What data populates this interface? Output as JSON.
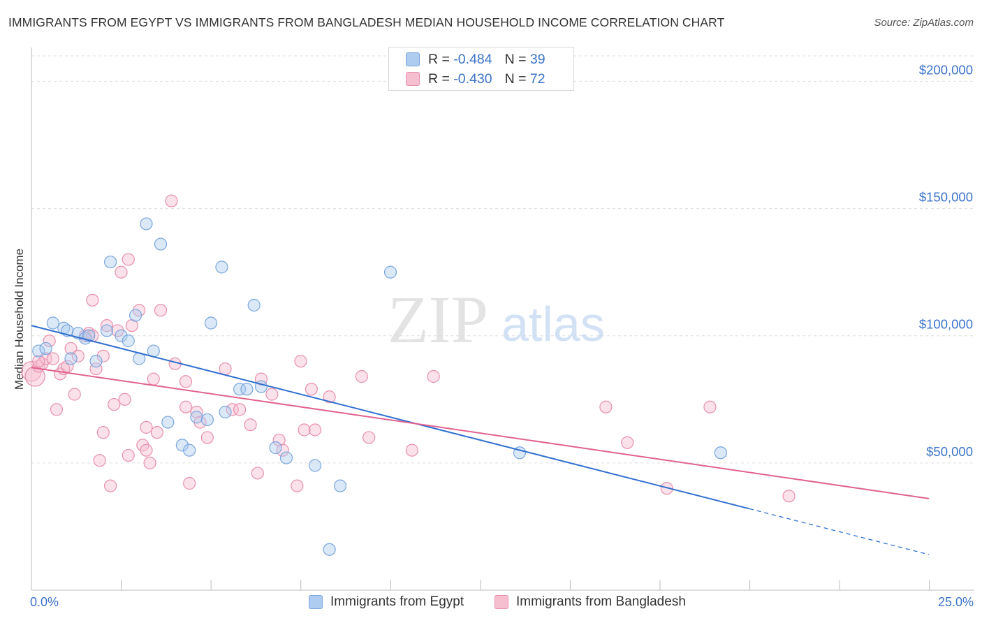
{
  "title": "IMMIGRANTS FROM EGYPT VS IMMIGRANTS FROM BANGLADESH MEDIAN HOUSEHOLD INCOME CORRELATION CHART",
  "source": "Source: ZipAtlas.com",
  "watermark": {
    "zip": "ZIP",
    "atlas": "atlas"
  },
  "legend_top": {
    "egypt": {
      "r_label": "R = ",
      "r_value": "-0.484",
      "n_label": "N = ",
      "n_value": "39"
    },
    "bangladesh": {
      "r_label": "R = ",
      "r_value": "-0.430",
      "n_label": "N = ",
      "n_value": "72"
    }
  },
  "colors": {
    "egypt_fill": "#aecbf0",
    "egypt_stroke": "#7aa6dc",
    "egypt_line": "#2f6fcf",
    "bangladesh_fill": "#f6bfd0",
    "bangladesh_stroke": "#e88fae",
    "bangladesh_line": "#e0628e",
    "axis_text": "#3b73c8",
    "grid": "#dddddd"
  },
  "chart_data": {
    "type": "scatter",
    "title": "IMMIGRANTS FROM EGYPT VS IMMIGRANTS FROM BANGLADESH MEDIAN HOUSEHOLD INCOME CORRELATION CHART",
    "xlabel": "",
    "ylabel": "Median Household Income",
    "xlim": [
      0,
      25
    ],
    "ylim": [
      0,
      210000
    ],
    "x_tick_labels": [
      "0.0%",
      "25.0%"
    ],
    "y_ticks": [
      50000,
      100000,
      150000,
      200000
    ],
    "y_tick_labels": [
      "$50,000",
      "$100,000",
      "$150,000",
      "$200,000"
    ],
    "grid": "horizontal dashed",
    "legend_position": "bottom",
    "series": [
      {
        "name": "Immigrants from Egypt",
        "r": -0.484,
        "n": 39,
        "trend": {
          "x0": 0,
          "y0": 104000,
          "x1": 20,
          "y1": 32000,
          "dashed_to": 25,
          "dashed_y": 14000
        },
        "points": [
          [
            0.2,
            94000
          ],
          [
            0.6,
            105000
          ],
          [
            0.9,
            103000
          ],
          [
            1.0,
            102000
          ],
          [
            1.1,
            91000
          ],
          [
            1.3,
            101000
          ],
          [
            1.5,
            99000
          ],
          [
            1.6,
            100000
          ],
          [
            1.8,
            90000
          ],
          [
            2.1,
            102000
          ],
          [
            2.2,
            129000
          ],
          [
            2.5,
            100000
          ],
          [
            2.7,
            98000
          ],
          [
            2.9,
            108000
          ],
          [
            3.0,
            91000
          ],
          [
            3.2,
            144000
          ],
          [
            3.4,
            94000
          ],
          [
            3.6,
            136000
          ],
          [
            3.8,
            66000
          ],
          [
            4.2,
            57000
          ],
          [
            4.4,
            55000
          ],
          [
            4.6,
            68000
          ],
          [
            4.9,
            67000
          ],
          [
            5.0,
            105000
          ],
          [
            5.3,
            127000
          ],
          [
            5.4,
            70000
          ],
          [
            5.8,
            79000
          ],
          [
            6.0,
            79000
          ],
          [
            6.2,
            112000
          ],
          [
            6.4,
            80000
          ],
          [
            6.8,
            56000
          ],
          [
            7.1,
            52000
          ],
          [
            7.9,
            49000
          ],
          [
            8.3,
            16000
          ],
          [
            8.6,
            41000
          ],
          [
            10.0,
            125000
          ],
          [
            13.6,
            54000
          ],
          [
            19.2,
            54000
          ],
          [
            0.4,
            95000
          ]
        ]
      },
      {
        "name": "Immigrants from Bangladesh",
        "r": -0.43,
        "n": 72,
        "trend": {
          "x0": 0,
          "y0": 87500,
          "x1": 25,
          "y1": 36000
        },
        "points": [
          [
            0.0,
            86000
          ],
          [
            0.1,
            84000
          ],
          [
            0.2,
            88000
          ],
          [
            0.3,
            89000
          ],
          [
            0.4,
            91000
          ],
          [
            0.5,
            98000
          ],
          [
            0.6,
            91000
          ],
          [
            0.7,
            71000
          ],
          [
            0.8,
            85000
          ],
          [
            0.9,
            87000
          ],
          [
            1.0,
            88000
          ],
          [
            1.1,
            95000
          ],
          [
            1.2,
            77000
          ],
          [
            1.3,
            92000
          ],
          [
            1.5,
            100000
          ],
          [
            1.6,
            101000
          ],
          [
            1.7,
            114000
          ],
          [
            1.8,
            87000
          ],
          [
            1.9,
            51000
          ],
          [
            2.0,
            92000
          ],
          [
            2.0,
            62000
          ],
          [
            2.1,
            104000
          ],
          [
            2.2,
            41000
          ],
          [
            2.3,
            73000
          ],
          [
            2.4,
            102000
          ],
          [
            2.5,
            125000
          ],
          [
            2.6,
            75000
          ],
          [
            2.7,
            130000
          ],
          [
            2.7,
            53000
          ],
          [
            2.8,
            104000
          ],
          [
            3.0,
            110000
          ],
          [
            3.1,
            57000
          ],
          [
            3.2,
            55000
          ],
          [
            3.2,
            64000
          ],
          [
            3.3,
            50000
          ],
          [
            3.4,
            83000
          ],
          [
            3.5,
            62000
          ],
          [
            3.6,
            110000
          ],
          [
            3.9,
            153000
          ],
          [
            4.0,
            89000
          ],
          [
            4.3,
            82000
          ],
          [
            4.3,
            72000
          ],
          [
            4.4,
            42000
          ],
          [
            4.6,
            70000
          ],
          [
            4.7,
            66000
          ],
          [
            4.9,
            60000
          ],
          [
            5.4,
            87000
          ],
          [
            5.6,
            71000
          ],
          [
            5.8,
            71000
          ],
          [
            6.1,
            65000
          ],
          [
            6.3,
            46000
          ],
          [
            6.4,
            83000
          ],
          [
            6.7,
            77000
          ],
          [
            6.9,
            59000
          ],
          [
            7.0,
            55000
          ],
          [
            7.4,
            41000
          ],
          [
            7.5,
            90000
          ],
          [
            7.6,
            63000
          ],
          [
            7.8,
            79000
          ],
          [
            7.9,
            63000
          ],
          [
            8.3,
            76000
          ],
          [
            9.2,
            84000
          ],
          [
            9.4,
            60000
          ],
          [
            10.6,
            55000
          ],
          [
            11.2,
            84000
          ],
          [
            16.0,
            72000
          ],
          [
            16.6,
            58000
          ],
          [
            17.7,
            40000
          ],
          [
            18.9,
            72000
          ],
          [
            21.1,
            37000
          ],
          [
            1.7,
            100000
          ],
          [
            0.2,
            90000
          ]
        ]
      }
    ]
  }
}
